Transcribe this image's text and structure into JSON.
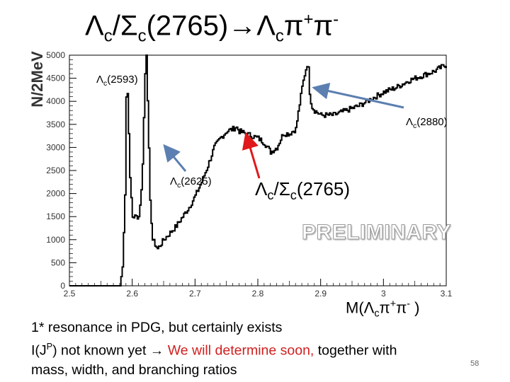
{
  "slide": {
    "title_parts": [
      "Λ",
      "c",
      "/Σ",
      "c",
      "(2765)→Λ",
      "c",
      "π",
      "+",
      "π",
      "-"
    ],
    "page_number": "58",
    "preliminary": "PRELIMINARY",
    "x_label_parts": [
      "M(Λ",
      "c",
      "π",
      "+",
      "π",
      "-",
      " )"
    ],
    "annotations": {
      "lc2593": [
        "Λ",
        "c",
        "(2593)"
      ],
      "lc2880": [
        "Λ",
        "c",
        "(2880)"
      ],
      "lc2625": [
        "Λ",
        "c",
        "(2625)"
      ],
      "lc2765": [
        "Λ",
        "c",
        "/Σ",
        "c",
        "(2765)"
      ]
    },
    "body": {
      "line1": "1* resonance in PDG, but certainly exists",
      "line2_a": "I(J",
      "line2_sup": "P",
      "line2_b": ") not known yet ",
      "line2_arrow": "→",
      "line2_red": " We will determine soon,",
      "line2_c": " together with",
      "line3": "mass, width, and branching ratios"
    },
    "colors": {
      "red": "#d02020",
      "blue_arrow": "#5b7fb0",
      "red_arrow": "#e0181a",
      "histogram": "#000000"
    }
  },
  "chart_data": {
    "type": "line",
    "style": "histogram",
    "ylabel": "N/2MeV",
    "xlim": [
      2.5,
      3.1
    ],
    "ylim": [
      0,
      5000
    ],
    "x_ticks": [
      "2.5",
      "2.6",
      "2.7",
      "2.8",
      "2.9",
      "3",
      "3.1"
    ],
    "y_ticks": [
      "0",
      "500",
      "1000",
      "1500",
      "2000",
      "2500",
      "3000",
      "3500",
      "4000",
      "4500",
      "5000"
    ],
    "x": [
      2.5,
      2.58,
      2.584,
      2.588,
      2.59,
      2.593,
      2.595,
      2.6,
      2.605,
      2.61,
      2.615,
      2.62,
      2.622,
      2.625,
      2.628,
      2.632,
      2.64,
      2.65,
      2.66,
      2.67,
      2.68,
      2.69,
      2.7,
      2.71,
      2.72,
      2.73,
      2.74,
      2.75,
      2.76,
      2.765,
      2.77,
      2.78,
      2.79,
      2.8,
      2.81,
      2.82,
      2.83,
      2.84,
      2.85,
      2.86,
      2.87,
      2.875,
      2.878,
      2.88,
      2.882,
      2.885,
      2.89,
      2.9,
      2.92,
      2.94,
      2.96,
      2.98,
      3.0,
      3.02,
      3.04,
      3.06,
      3.08,
      3.1
    ],
    "y": [
      0,
      0,
      400,
      2000,
      4100,
      4200,
      2500,
      1500,
      1500,
      1500,
      2200,
      4600,
      5200,
      3500,
      1800,
      1000,
      800,
      1000,
      1150,
      1300,
      1500,
      1700,
      1950,
      2250,
      2600,
      3000,
      3200,
      3350,
      3400,
      3450,
      3350,
      3300,
      3250,
      3200,
      3100,
      2900,
      3000,
      3300,
      3300,
      3400,
      4300,
      4650,
      4800,
      4700,
      4200,
      3900,
      3800,
      3700,
      3700,
      3800,
      3900,
      4050,
      4200,
      4300,
      4450,
      4550,
      4650,
      4800
    ]
  }
}
